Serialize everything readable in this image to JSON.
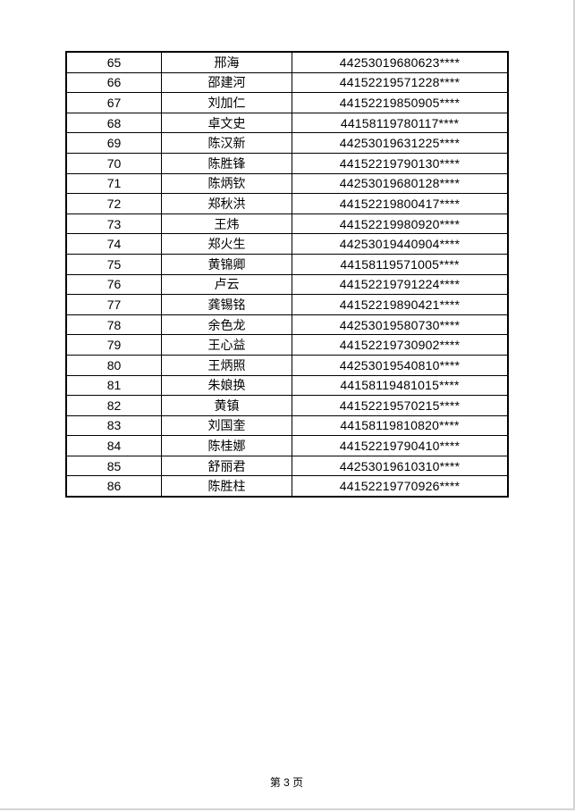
{
  "page": {
    "footer": "第 3 页"
  },
  "table": {
    "columns": [
      "index",
      "name",
      "id_number"
    ],
    "rows": [
      {
        "index": "65",
        "name": "邢海",
        "id_number": "44253019680623****"
      },
      {
        "index": "66",
        "name": "邵建河",
        "id_number": "44152219571228****"
      },
      {
        "index": "67",
        "name": "刘加仁",
        "id_number": "44152219850905****"
      },
      {
        "index": "68",
        "name": "卓文史",
        "id_number": "44158119780117****"
      },
      {
        "index": "69",
        "name": "陈汉新",
        "id_number": "44253019631225****"
      },
      {
        "index": "70",
        "name": "陈胜锋",
        "id_number": "44152219790130****"
      },
      {
        "index": "71",
        "name": "陈炳钦",
        "id_number": "44253019680128****"
      },
      {
        "index": "72",
        "name": "郑秋洪",
        "id_number": "44152219800417****"
      },
      {
        "index": "73",
        "name": "王炜",
        "id_number": "44152219980920****"
      },
      {
        "index": "74",
        "name": "郑火生",
        "id_number": "44253019440904****"
      },
      {
        "index": "75",
        "name": "黄锦卿",
        "id_number": "44158119571005****"
      },
      {
        "index": "76",
        "name": "卢云",
        "id_number": "44152219791224****"
      },
      {
        "index": "77",
        "name": "龚锡铭",
        "id_number": "44152219890421****"
      },
      {
        "index": "78",
        "name": "余色龙",
        "id_number": "44253019580730****"
      },
      {
        "index": "79",
        "name": "王心益",
        "id_number": "44152219730902****"
      },
      {
        "index": "80",
        "name": "王炳照",
        "id_number": "44253019540810****"
      },
      {
        "index": "81",
        "name": "朱娘换",
        "id_number": "44158119481015****"
      },
      {
        "index": "82",
        "name": "黄镇",
        "id_number": "44152219570215****"
      },
      {
        "index": "83",
        "name": "刘国奎",
        "id_number": "44158119810820****"
      },
      {
        "index": "84",
        "name": "陈桂娜",
        "id_number": "44152219790410****"
      },
      {
        "index": "85",
        "name": "舒丽君",
        "id_number": "44253019610310****"
      },
      {
        "index": "86",
        "name": "陈胜柱",
        "id_number": "44152219770926****"
      }
    ]
  }
}
